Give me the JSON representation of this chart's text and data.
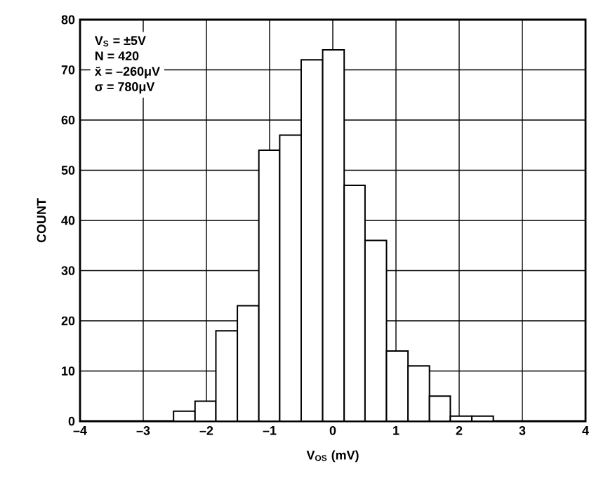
{
  "chart_data": {
    "type": "histogram",
    "xlabel": "V$_{OS}$ (mV)",
    "ylabel": "COUNT",
    "bins": [
      -2.52,
      -2.18,
      -1.85,
      -1.51,
      -1.17,
      -0.84,
      -0.5,
      -0.16,
      0.18,
      0.51,
      0.85,
      1.19,
      1.53,
      1.86,
      2.2,
      2.54
    ],
    "values": [
      2,
      4,
      18,
      23,
      54,
      57,
      72,
      74,
      47,
      36,
      14,
      11,
      5,
      1,
      1
    ],
    "color": "#ffffff",
    "xlim": [
      -4,
      4
    ],
    "xticks": [
      {
        "value": -4,
        "label": "–4"
      },
      {
        "value": -3,
        "label": "–3"
      },
      {
        "value": -2,
        "label": "–2"
      },
      {
        "value": -1,
        "label": "–1"
      },
      0,
      1,
      2,
      3,
      4
    ],
    "ylim": [
      0,
      80
    ],
    "yticks": [
      0,
      10,
      20,
      30,
      40,
      50,
      60,
      70,
      80
    ],
    "grid": true,
    "annotations": [
      "V$_{S}$ = ±5V",
      "N = 420",
      "x̄ = –260μV",
      "σ = 780μV"
    ]
  }
}
